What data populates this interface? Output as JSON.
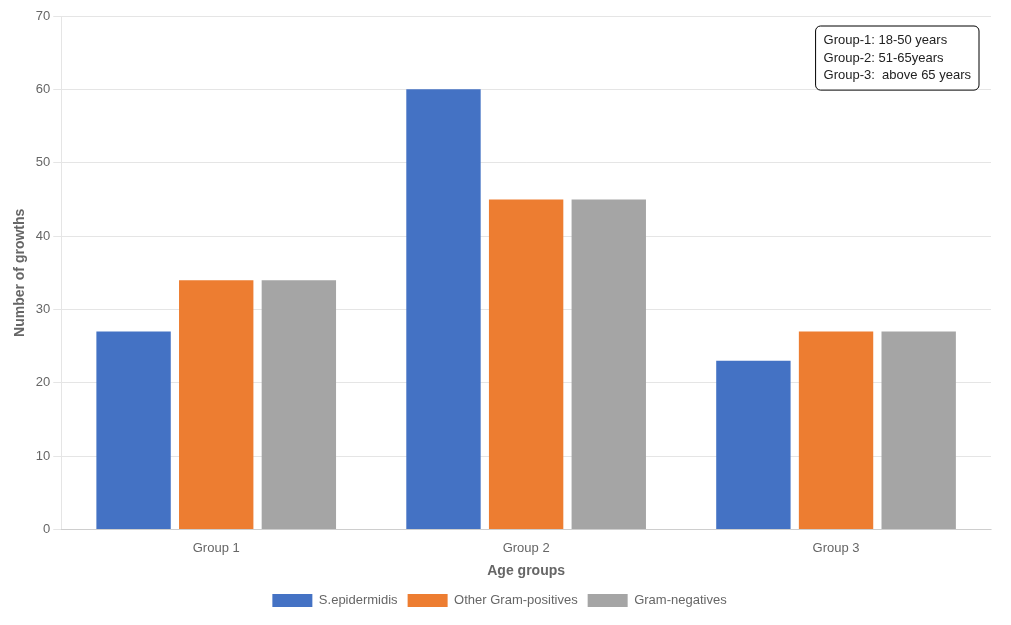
{
  "chart_data": {
    "type": "bar",
    "xlabel": "Age groups",
    "ylabel": "Number of growths",
    "categories": [
      "Group 1",
      "Group 2",
      "Group 3"
    ],
    "series": [
      {
        "name": "S.epidermidis",
        "color": "#4472C4",
        "values": [
          27,
          60,
          23
        ]
      },
      {
        "name": "Other Gram-positives",
        "color": "#ED7D31",
        "values": [
          34,
          45,
          27
        ]
      },
      {
        "name": "Gram-negatives",
        "color": "#A5A5A5",
        "values": [
          34,
          45,
          27
        ]
      }
    ],
    "ylim": [
      0,
      70
    ],
    "yticks": [
      0,
      10,
      20,
      30,
      40,
      50,
      60,
      70
    ],
    "grid": true,
    "legend": "bottom",
    "annotations": [
      "Group-1: 18-50 years",
      "Group-2: 51-65years",
      "Group-3:  above 65 years"
    ]
  }
}
